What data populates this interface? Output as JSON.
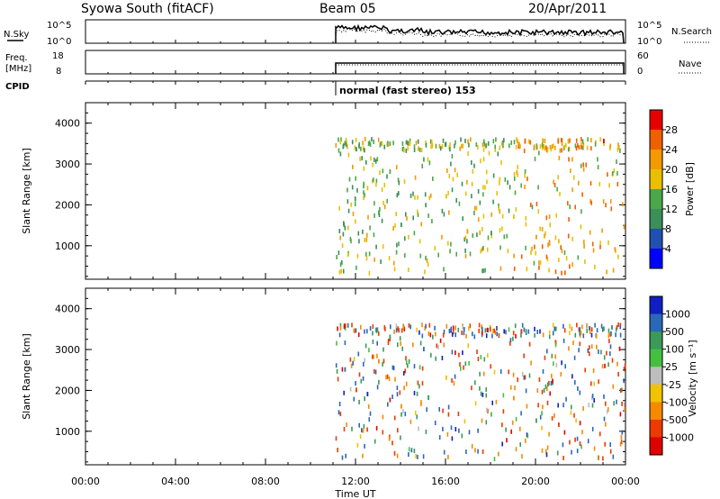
{
  "header": {
    "title": "Syowa South (fitACF)",
    "beam": "Beam 05",
    "date": "20/Apr/2011"
  },
  "top_panels": {
    "nsky_label": "N.Sky",
    "nsearch_label": "N.Search",
    "noise_ticks_left": [
      "10^5",
      "10^0"
    ],
    "noise_ticks_right": [
      "10^5",
      "10^0"
    ],
    "freq_label_1": "Freq.",
    "freq_label_2": "[MHz]",
    "freq_ticks": [
      "18",
      "8"
    ],
    "nave_label": "Nave",
    "nave_ticks": [
      "60",
      "0"
    ],
    "cpid_label": "CPID",
    "cpid_text": "normal (fast stereo) 153"
  },
  "axes": {
    "ylabel": "Slant Range [km]",
    "xlabel": "Time UT",
    "yticks": [
      "1000",
      "2000",
      "3000",
      "4000"
    ],
    "xticks": [
      "00:00",
      "04:00",
      "08:00",
      "12:00",
      "16:00",
      "20:00",
      "00:00"
    ]
  },
  "colorbars": {
    "power": {
      "label": "Power [dB]",
      "ticks": [
        "4",
        "8",
        "12",
        "16",
        "20",
        "24",
        "28"
      ],
      "colors": [
        "#0000ff",
        "#2050b0",
        "#3a8f5a",
        "#4aa84a",
        "#e8c000",
        "#f39a00",
        "#ef6000",
        "#e60000"
      ]
    },
    "velocity": {
      "label": "Velocity [m s⁻¹]",
      "ticks": [
        "1000",
        "500",
        "100",
        "25",
        "-25",
        "-100",
        "-500",
        "-1000"
      ],
      "colors": [
        "#1020c0",
        "#2a68b8",
        "#3a9a5a",
        "#44c040",
        "#bdbdbd",
        "#f1c200",
        "#f58a00",
        "#ec3a00",
        "#e00000"
      ]
    }
  },
  "chart_data": [
    {
      "type": "scatter",
      "title": "Power",
      "x_unit": "hours UT",
      "xlim": [
        0,
        24
      ],
      "ylabel": "Slant Range [km]",
      "ylim": [
        180,
        4500
      ],
      "color_quantity": "Power [dB]",
      "color_range": [
        0,
        30
      ],
      "points_summary": "Scattered range-gate echoes between ~11.1 and 24 UT, 300-3600 km; stronger (16-28 dB) near 19-24 UT around 1000-1500 km and 3300-3600 km",
      "points": [
        {
          "x": 11.5,
          "y": 3500,
          "v": 12
        },
        {
          "x": 12.0,
          "y": 3350,
          "v": 10
        },
        {
          "x": 12.5,
          "y": 2400,
          "v": 16
        },
        {
          "x": 13.0,
          "y": 1800,
          "v": 14
        },
        {
          "x": 13.5,
          "y": 2800,
          "v": 12
        },
        {
          "x": 14.0,
          "y": 1500,
          "v": 8
        },
        {
          "x": 15.0,
          "y": 3100,
          "v": 12
        },
        {
          "x": 16.0,
          "y": 2200,
          "v": 18
        },
        {
          "x": 17.0,
          "y": 3450,
          "v": 14
        },
        {
          "x": 18.0,
          "y": 1300,
          "v": 10
        },
        {
          "x": 19.0,
          "y": 1700,
          "v": 16
        },
        {
          "x": 20.0,
          "y": 1200,
          "v": 20
        },
        {
          "x": 21.0,
          "y": 1100,
          "v": 18
        },
        {
          "x": 22.0,
          "y": 3400,
          "v": 24
        },
        {
          "x": 23.0,
          "y": 3550,
          "v": 28
        },
        {
          "x": 23.5,
          "y": 900,
          "v": 22
        }
      ]
    },
    {
      "type": "scatter",
      "title": "Velocity",
      "x_unit": "hours UT",
      "xlim": [
        0,
        24
      ],
      "ylabel": "Slant Range [km]",
      "ylim": [
        180,
        4500
      ],
      "color_quantity": "Velocity [m s^-1]",
      "color_range": [
        -1000,
        1000
      ],
      "points_summary": "Mixed positive and negative velocities between ~11.1 and 24 UT; many strong values near 12-15 UT at 1800-3000 km",
      "points": [
        {
          "x": 11.5,
          "y": 2500,
          "v": 800
        },
        {
          "x": 12.0,
          "y": 2000,
          "v": -700
        },
        {
          "x": 12.5,
          "y": 1900,
          "v": 1000
        },
        {
          "x": 13.0,
          "y": 2700,
          "v": -300
        },
        {
          "x": 13.5,
          "y": 3300,
          "v": 200
        },
        {
          "x": 14.0,
          "y": 1600,
          "v": -500
        },
        {
          "x": 15.0,
          "y": 3000,
          "v": 600
        },
        {
          "x": 16.0,
          "y": 2300,
          "v": -100
        },
        {
          "x": 17.0,
          "y": 3500,
          "v": -50
        },
        {
          "x": 18.0,
          "y": 1400,
          "v": 50
        },
        {
          "x": 19.0,
          "y": 1800,
          "v": -200
        },
        {
          "x": 20.0,
          "y": 1250,
          "v": 120
        },
        {
          "x": 21.0,
          "y": 1150,
          "v": -800
        },
        {
          "x": 22.0,
          "y": 3400,
          "v": -60
        },
        {
          "x": 23.0,
          "y": 3500,
          "v": 400
        }
      ]
    }
  ]
}
